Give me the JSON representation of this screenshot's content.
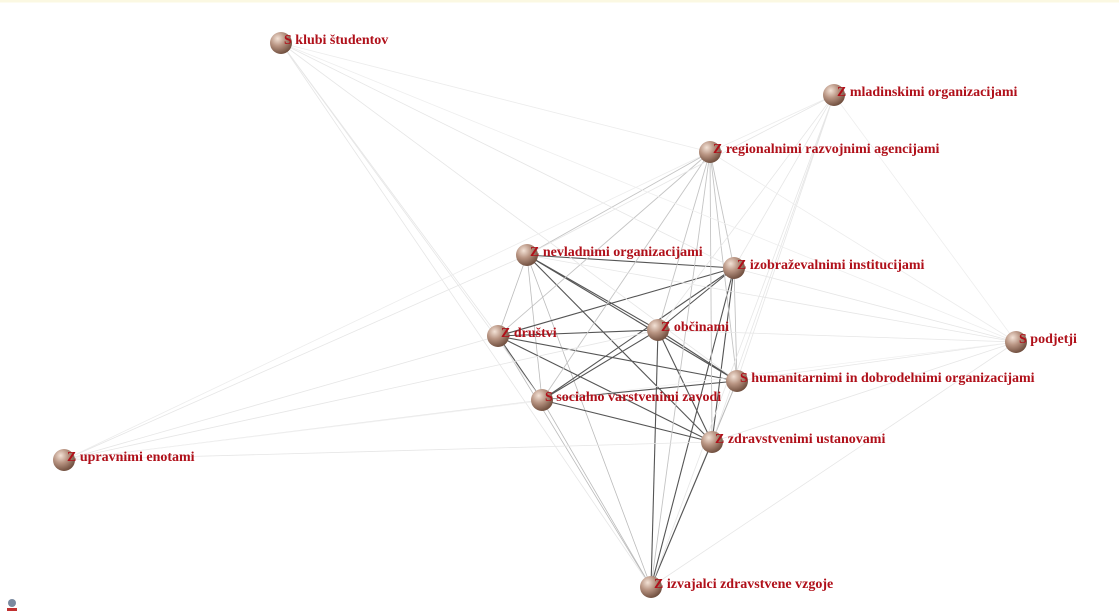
{
  "nodes": [
    {
      "label": "S klubi študentov"
    },
    {
      "label": "Z mladinskimi organizacijami"
    },
    {
      "label": "Z regionalnimi razvojnimi agencijami"
    },
    {
      "label": "Z nevladnimi organizacijami"
    },
    {
      "label": "Z izobraževalnimi institucijami"
    },
    {
      "label": "Z društvi"
    },
    {
      "label": "Z občinami"
    },
    {
      "label": "S podjetji"
    },
    {
      "label": "S humanitarnimi in dobrodelnimi organizacijami"
    },
    {
      "label": "S socialno varstvenimi zavodi"
    },
    {
      "label": "Z zdravstvenimi ustanovami"
    },
    {
      "label": "Z upravnimi enotami"
    },
    {
      "label": "Z izvajalci zdravstvene vzgoje"
    }
  ]
}
